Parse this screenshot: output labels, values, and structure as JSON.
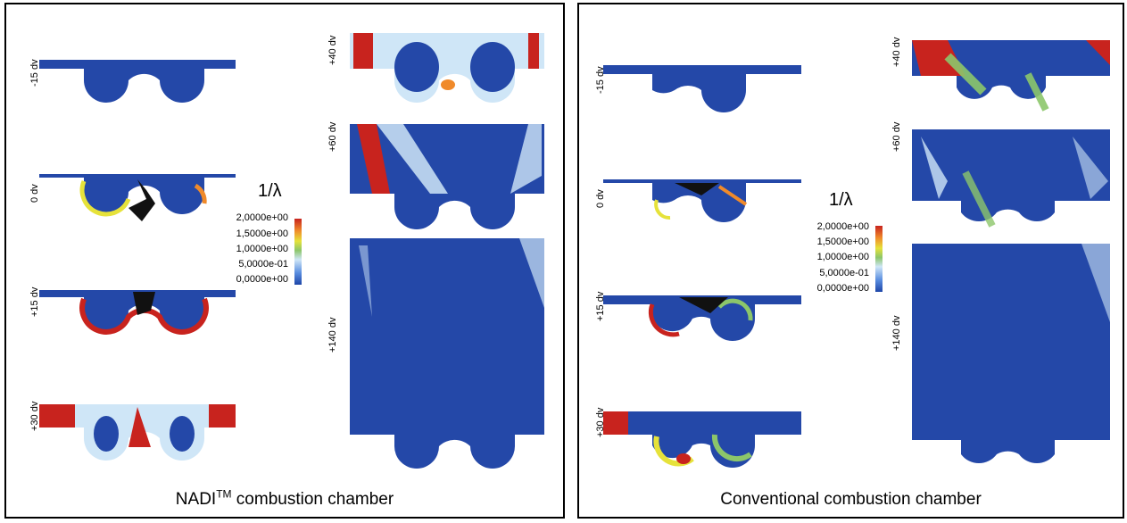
{
  "left_panel": {
    "caption_main": "NADI",
    "caption_sup": "TM",
    "caption_rest": " combustion chamber",
    "labels": [
      "-15 dv",
      "0 dv",
      "+15 dv",
      "+30 dv",
      "+40 dv",
      "+60 dv",
      "+140 dv"
    ],
    "scale_title": "1/λ",
    "scale_ticks": [
      "2,0000e+00",
      "1,5000e+00",
      "1,0000e+00",
      "5,0000e-01",
      "0,0000e+00"
    ]
  },
  "right_panel": {
    "caption": "Conventional combustion chamber",
    "labels": [
      "-15 dv",
      "0 dv",
      "+15 dv",
      "+30 dv",
      "+40 dv",
      "+60 dv",
      "+140 dv"
    ],
    "scale_title": "1/λ",
    "scale_ticks": [
      "2,0000e+00",
      "1,5000e+00",
      "1,0000e+00",
      "5,0000e-01",
      "0,0000e+00"
    ]
  },
  "colors": {
    "blue": "#2448a8",
    "light_blue": "#cfe6f7",
    "green": "#8cc66a",
    "yellow": "#e6e23a",
    "orange": "#f08a2a",
    "red": "#c8231e"
  }
}
